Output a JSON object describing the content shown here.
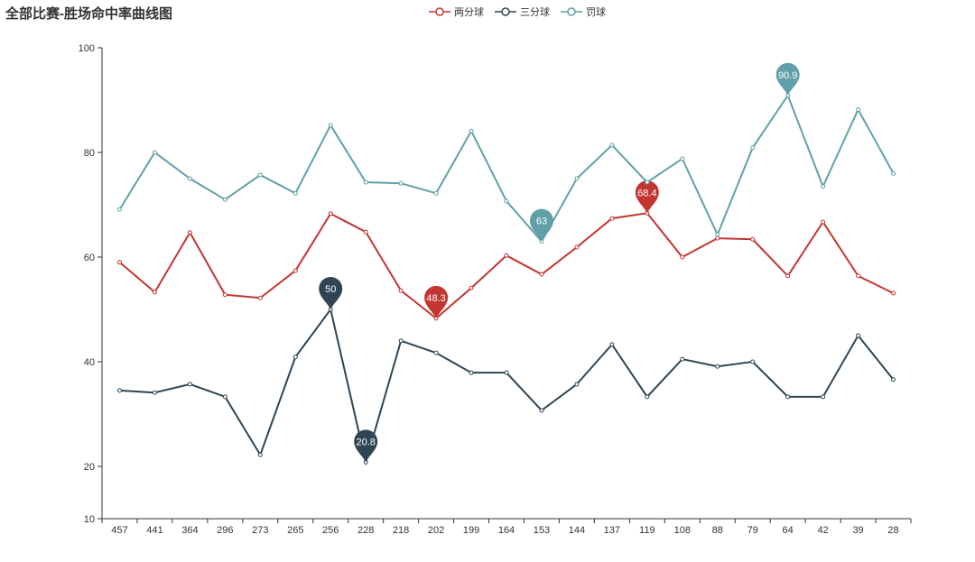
{
  "chart_data": {
    "type": "line",
    "title": "全部比赛-胜场命中率曲线图",
    "xlabel": "",
    "ylabel": "",
    "ylim": [
      10,
      100
    ],
    "yticks": [
      10,
      20,
      40,
      60,
      80,
      100
    ],
    "legend_position": "top-center",
    "categories": [
      "457",
      "441",
      "364",
      "296",
      "273",
      "265",
      "256",
      "228",
      "218",
      "202",
      "199",
      "164",
      "153",
      "144",
      "137",
      "119",
      "108",
      "88",
      "79",
      "64",
      "42",
      "39",
      "28"
    ],
    "series": [
      {
        "name": "两分球",
        "color": "#c23531",
        "values": [
          59.0,
          53.3,
          64.7,
          52.8,
          52.2,
          57.4,
          68.3,
          64.8,
          53.6,
          48.3,
          54.1,
          60.3,
          56.7,
          61.9,
          67.4,
          68.4,
          60.0,
          63.6,
          63.4,
          56.4,
          66.7,
          56.4,
          53.1
        ],
        "markers": [
          {
            "label": "68.4",
            "index": 15
          },
          {
            "label": "48.3",
            "index": 9
          }
        ]
      },
      {
        "name": "三分球",
        "color": "#2f4554",
        "values": [
          34.5,
          34.1,
          35.7,
          33.3,
          22.2,
          40.9,
          50.0,
          20.8,
          44.0,
          41.7,
          37.9,
          37.9,
          30.7,
          35.7,
          43.3,
          33.3,
          40.5,
          39.1,
          40.0,
          33.3,
          33.3,
          45.0,
          36.6
        ],
        "markers": [
          {
            "label": "50",
            "index": 6
          },
          {
            "label": "20.8",
            "index": 7
          }
        ]
      },
      {
        "name": "罚球",
        "color": "#61a0a8",
        "values": [
          69.1,
          80.0,
          75.0,
          71.0,
          75.7,
          72.2,
          85.2,
          74.3,
          74.1,
          72.2,
          84.1,
          70.7,
          63.0,
          75.0,
          81.4,
          74.3,
          78.8,
          64.3,
          80.9,
          90.9,
          73.5,
          88.2,
          76.0
        ],
        "markers": [
          {
            "label": "90.9",
            "index": 19
          },
          {
            "label": "63",
            "index": 12
          }
        ]
      }
    ]
  }
}
